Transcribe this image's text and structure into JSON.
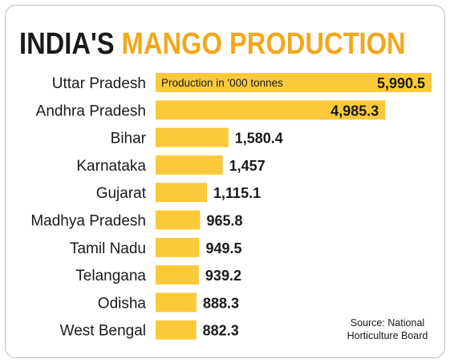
{
  "title": {
    "part1": "INDIA'S",
    "part2": "MANGO PRODUCTION"
  },
  "source": {
    "line1": "Source: National",
    "line2": "Horticulture Board"
  },
  "colors": {
    "bar": "#fcc93a",
    "title_dark": "#1a1a1a",
    "title_accent": "#f2a71b",
    "text": "#1a1a1a"
  },
  "chart_data": {
    "type": "bar",
    "orientation": "horizontal",
    "title": "INDIA'S MANGO PRODUCTION",
    "annotation": "Production in '000 tonnes",
    "categories": [
      "Uttar Pradesh",
      "Andhra Pradesh",
      "Bihar",
      "Karnataka",
      "Gujarat",
      "Madhya Pradesh",
      "Tamil Nadu",
      "Telangana",
      "Odisha",
      "West Bengal"
    ],
    "values": [
      5990.5,
      4985.3,
      1580.4,
      1457,
      1115.1,
      965.8,
      949.5,
      939.2,
      888.3,
      882.3
    ],
    "labels": [
      "5,990.5",
      "4,985.3",
      "1,580.4",
      "1,457",
      "1,115.1",
      "965.8",
      "949.5",
      "939.2",
      "888.3",
      "882.3"
    ],
    "xlim": [
      0,
      5990.5
    ],
    "grid": false,
    "legend": "none"
  }
}
